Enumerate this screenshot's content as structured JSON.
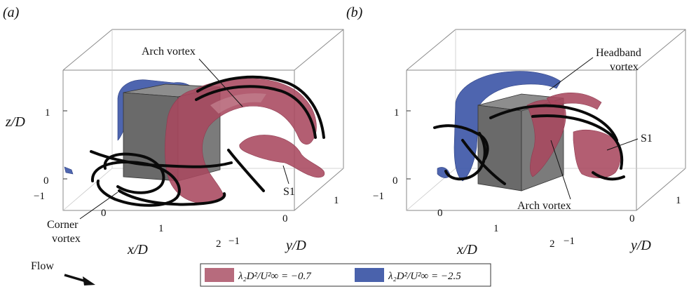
{
  "panels": [
    {
      "id": "a",
      "label": "(a)",
      "annotations": {
        "arch": "Arch vortex",
        "s1": "S1",
        "corner": "Corner\nvortex"
      }
    },
    {
      "id": "b",
      "label": "(b)",
      "annotations": {
        "headband": "Headband\nvortex",
        "s1": "S1",
        "arch": "Arch vortex"
      }
    }
  ],
  "axes": {
    "z_label": "z/D",
    "x_label": "x/D",
    "y_label": "y/D",
    "z_ticks": [
      "0",
      "1"
    ],
    "x_ticks": [
      "−1",
      "0",
      "1",
      "2"
    ],
    "y_ticks": [
      "−1",
      "0",
      "1"
    ]
  },
  "flow_label": "Flow",
  "legend": [
    {
      "label": "λ₂D²/U²∞ = −0.7",
      "color": "#b76b7d"
    },
    {
      "label": "λ₂D²/U²∞ = −2.5",
      "color": "#4a62ac"
    }
  ],
  "colors": {
    "positive_isosurface": "#a8485f",
    "negative_isosurface": "#3f58a8",
    "cube": "#7a7a7a",
    "streamlines": "#0a0a0a"
  }
}
